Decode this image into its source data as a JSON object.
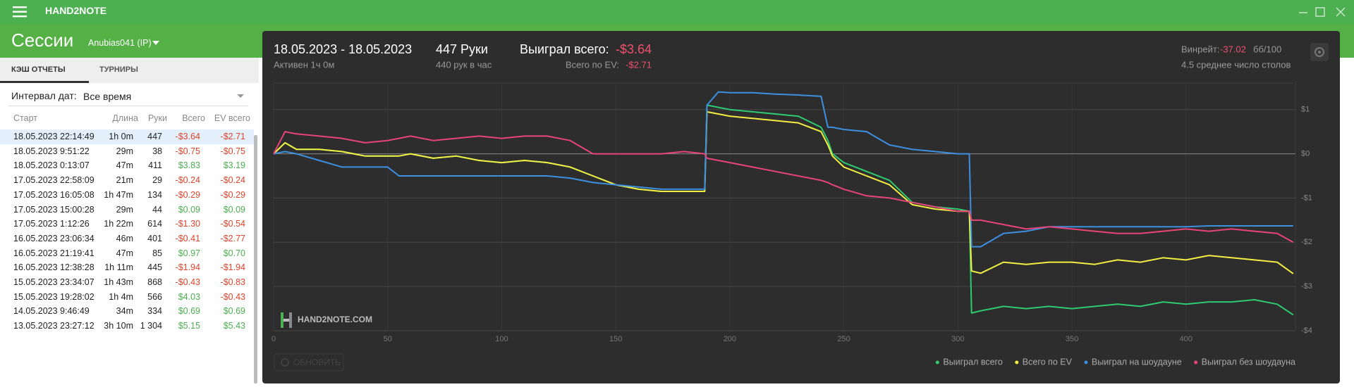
{
  "app": {
    "name": "HAND2NOTE"
  },
  "header": {
    "title": "Сессии",
    "account": "Anubias041 (IP)"
  },
  "sidebar": {
    "tabs": [
      "КЭШ ОТЧЕТЫ",
      "ТУРНИРЫ"
    ],
    "interval_label": "Интервал дат:",
    "interval_value": "Все время",
    "table": {
      "columns": [
        "Старт",
        "Длина",
        "Руки",
        "Всего",
        "EV всего"
      ],
      "rows": [
        [
          "18.05.2023 22:14:49",
          "1h 0m",
          "447",
          "-$3.64",
          "-$2.71"
        ],
        [
          "18.05.2023 9:51:22",
          "29m",
          "38",
          "-$0.75",
          "-$0.75"
        ],
        [
          "18.05.2023 0:13:07",
          "47m",
          "411",
          "$3.83",
          "$3.19"
        ],
        [
          "17.05.2023 22:58:09",
          "21m",
          "29",
          "-$0.24",
          "-$0.24"
        ],
        [
          "17.05.2023 16:05:08",
          "1h 47m",
          "134",
          "-$0.29",
          "-$0.29"
        ],
        [
          "17.05.2023 15:00:28",
          "29m",
          "44",
          "$0.09",
          "$0.09"
        ],
        [
          "17.05.2023 1:12:26",
          "1h 22m",
          "614",
          "-$1.30",
          "-$0.54"
        ],
        [
          "16.05.2023 23:06:34",
          "46m",
          "401",
          "-$0.41",
          "-$2.77"
        ],
        [
          "16.05.2023 21:19:41",
          "47m",
          "85",
          "$0.97",
          "$0.70"
        ],
        [
          "16.05.2023 12:38:28",
          "1h 11m",
          "445",
          "-$1.94",
          "-$1.94"
        ],
        [
          "15.05.2023 23:34:07",
          "1h 43m",
          "868",
          "-$0.43",
          "-$0.83"
        ],
        [
          "15.05.2023 19:28:02",
          "1h 4m",
          "566",
          "$4.03",
          "-$0.43"
        ],
        [
          "14.05.2023 9:46:49",
          "34m",
          "334",
          "$0.69",
          "$0.69"
        ],
        [
          "13.05.2023 23:27:12",
          "3h 10m",
          "1 304",
          "$5.15",
          "$5.43"
        ]
      ]
    }
  },
  "stats": {
    "date_range": "18.05.2023 - 18.05.2023",
    "active": "Активен 1ч 0м",
    "hands": "447 Руки",
    "hands_per_hour": "440 рук в час",
    "won_label": "Выиграл всего:",
    "won_value": "-$3.64",
    "ev_label": "Всего по EV:",
    "ev_value": "-$2.71",
    "winrate_label": "Винрейт:",
    "winrate_value": "-37.02",
    "winrate_unit": "бб/100",
    "tables": "4.5 среднее число столов"
  },
  "watermark": "HAND2NOTE.COM",
  "refresh_button": "ОБНОВИТЬ",
  "chart_data": {
    "type": "line",
    "x": [
      0,
      5,
      10,
      20,
      30,
      40,
      50,
      55,
      60,
      70,
      80,
      90,
      100,
      110,
      120,
      130,
      140,
      150,
      160,
      170,
      180,
      189,
      190,
      195,
      200,
      210,
      220,
      230,
      240,
      243,
      245,
      250,
      260,
      270,
      280,
      290,
      300,
      305,
      306,
      310,
      320,
      330,
      340,
      350,
      360,
      370,
      380,
      390,
      400,
      410,
      420,
      430,
      440,
      447
    ],
    "series": [
      {
        "name": "Выиграл всего",
        "color": "#2ecc71",
        "values": [
          0,
          0.25,
          0.1,
          0.1,
          0.05,
          -0.05,
          -0.05,
          -0.05,
          0,
          -0.1,
          -0.05,
          -0.15,
          -0.2,
          -0.15,
          -0.2,
          -0.3,
          -0.5,
          -0.7,
          -0.8,
          -0.85,
          -0.85,
          -0.85,
          1.1,
          1.05,
          1,
          0.95,
          0.9,
          0.85,
          0.6,
          0.3,
          0,
          -0.2,
          -0.4,
          -0.6,
          -1.1,
          -1.2,
          -1.25,
          -1.3,
          -3.6,
          -3.55,
          -3.45,
          -3.5,
          -3.45,
          -3.5,
          -3.45,
          -3.4,
          -3.45,
          -3.35,
          -3.4,
          -3.35,
          -3.35,
          -3.3,
          -3.4,
          -3.64
        ]
      },
      {
        "name": "Всего по EV",
        "color": "#f4ee42",
        "values": [
          0,
          0.25,
          0.1,
          0.1,
          0.05,
          -0.05,
          -0.05,
          -0.05,
          0,
          -0.1,
          -0.05,
          -0.15,
          -0.2,
          -0.15,
          -0.2,
          -0.3,
          -0.5,
          -0.7,
          -0.8,
          -0.85,
          -0.85,
          -0.85,
          0.95,
          0.9,
          0.85,
          0.8,
          0.75,
          0.7,
          0.5,
          0.2,
          -0.05,
          -0.3,
          -0.5,
          -0.7,
          -1.15,
          -1.25,
          -1.3,
          -1.3,
          -2.65,
          -2.7,
          -2.45,
          -2.5,
          -2.45,
          -2.45,
          -2.5,
          -2.4,
          -2.45,
          -2.35,
          -2.4,
          -2.3,
          -2.35,
          -2.4,
          -2.45,
          -2.71
        ]
      },
      {
        "name": "Выиграл на шоудауне",
        "color": "#3d8fe0",
        "values": [
          0,
          0.05,
          0,
          -0.15,
          -0.3,
          -0.3,
          -0.3,
          -0.5,
          -0.5,
          -0.5,
          -0.5,
          -0.5,
          -0.5,
          -0.5,
          -0.5,
          -0.55,
          -0.65,
          -0.7,
          -0.75,
          -0.8,
          -0.8,
          -0.8,
          1.1,
          1.4,
          1.38,
          1.38,
          1.35,
          1.33,
          1.3,
          0.6,
          0.6,
          0.55,
          0.5,
          0.2,
          0.1,
          0.05,
          0,
          0,
          -2.1,
          -2.1,
          -1.8,
          -1.75,
          -1.65,
          -1.65,
          -1.65,
          -1.65,
          -1.65,
          -1.65,
          -1.65,
          -1.63,
          -1.63,
          -1.63,
          -1.63,
          -1.63
        ]
      },
      {
        "name": "Выиграл без шоудауна",
        "color": "#e8447a",
        "values": [
          0,
          0.5,
          0.45,
          0.4,
          0.35,
          0.25,
          0.3,
          0.35,
          0.4,
          0.3,
          0.35,
          0.4,
          0.35,
          0.4,
          0.4,
          0.3,
          0,
          0,
          0,
          0,
          0.05,
          0,
          -0.1,
          -0.15,
          -0.2,
          -0.3,
          -0.4,
          -0.5,
          -0.6,
          -0.65,
          -0.7,
          -0.8,
          -0.95,
          -1,
          -1.1,
          -1.2,
          -1.3,
          -1.3,
          -1.5,
          -1.5,
          -1.6,
          -1.7,
          -1.65,
          -1.7,
          -1.75,
          -1.8,
          -1.8,
          -1.75,
          -1.7,
          -1.75,
          -1.7,
          -1.75,
          -1.8,
          -2
        ]
      }
    ],
    "xlim": [
      0,
      448
    ],
    "ylim": [
      -4,
      1.6
    ],
    "xticks": [
      0,
      50,
      100,
      150,
      200,
      250,
      300,
      350,
      400
    ],
    "yticks": [
      {
        "value": -4,
        "label": "-$4"
      },
      {
        "value": -3,
        "label": "-$3"
      },
      {
        "value": -2,
        "label": "-$2"
      },
      {
        "value": -1,
        "label": "-$1"
      },
      {
        "value": 0,
        "label": "$0"
      },
      {
        "value": 1,
        "label": "$1"
      }
    ],
    "grid": true,
    "legend": "bottom-right"
  }
}
